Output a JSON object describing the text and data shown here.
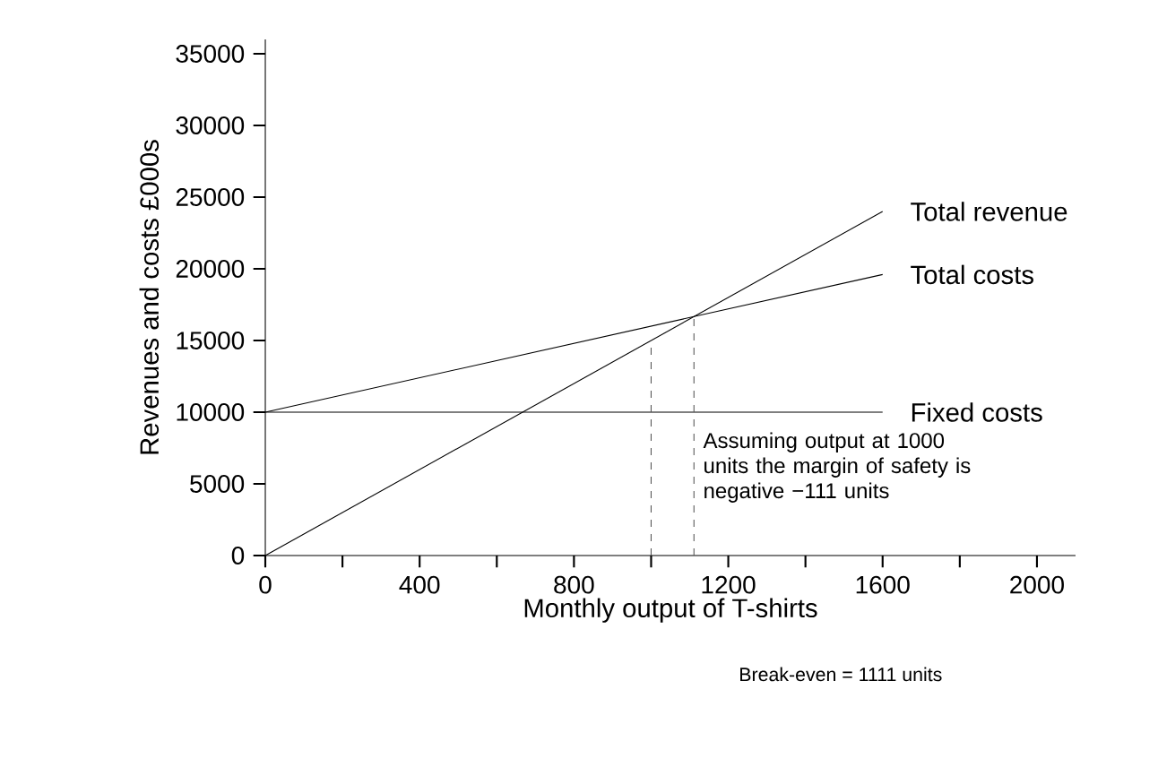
{
  "chart_data": {
    "type": "line",
    "xlabel": "Monthly output of T-shirts",
    "ylabel": "Revenues and costs £000s",
    "xlim": [
      0,
      2100
    ],
    "ylim": [
      0,
      36000
    ],
    "xticks": [
      0,
      {
        "value": 200,
        "label": null
      },
      400,
      {
        "value": 600,
        "label": null
      },
      800,
      {
        "value": 1000,
        "label": null
      },
      1200,
      {
        "value": 1400,
        "label": null
      },
      1600,
      {
        "value": 1800,
        "label": null
      },
      2000
    ],
    "yticks": [
      0,
      5000,
      10000,
      15000,
      20000,
      25000,
      30000,
      35000
    ],
    "grid": false,
    "legend": false,
    "series": [
      {
        "name": "Total revenue",
        "color": "#000000",
        "x": [
          0,
          1600
        ],
        "values": [
          0,
          24000
        ]
      },
      {
        "name": "Total costs",
        "color": "#000000",
        "x": [
          0,
          1600
        ],
        "values": [
          10000,
          19600
        ]
      },
      {
        "name": "Fixed costs",
        "color": "#000000",
        "x": [
          0,
          1600
        ],
        "values": [
          10000,
          10000
        ]
      },
      {
        "color": "#555555",
        "x": [
          1000,
          1000
        ],
        "values": [
          0,
          15000
        ],
        "line_style": "dashed"
      },
      {
        "color": "#555555",
        "x": [
          1111,
          1111
        ],
        "values": [
          0,
          16700
        ],
        "line_style": "dashed"
      }
    ],
    "annotations": [
      "Assuming output at 1000 units the margin of safety is negative −111 units",
      "Break-even = 1111 units"
    ]
  }
}
